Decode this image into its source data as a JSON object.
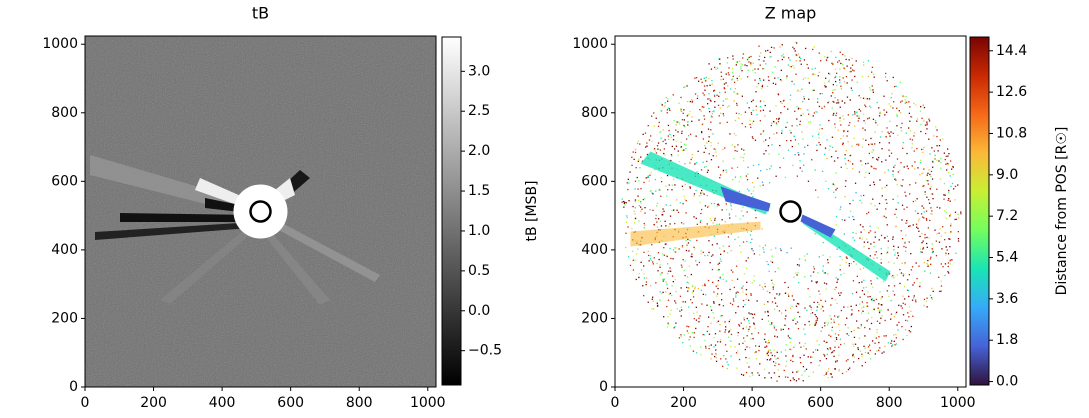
{
  "chart_data": [
    {
      "type": "image",
      "title": "tB",
      "xlim": [
        0,
        1024
      ],
      "ylim": [
        0,
        1024
      ],
      "xticks": [
        0,
        200,
        400,
        600,
        800,
        1000
      ],
      "yticks": [
        0,
        200,
        400,
        600,
        800,
        1000
      ],
      "colorbar": {
        "label": "tB [MSB]",
        "lim": [
          -0.93,
          3.43
        ],
        "ticks": [
          {
            "value": -0.5,
            "label": "−0.5"
          },
          {
            "value": 0,
            "label": "0.0"
          },
          0.5,
          {
            "value": 1,
            "label": "1.0"
          },
          1.5,
          {
            "value": 2,
            "label": "2.0"
          },
          2.5,
          {
            "value": 3,
            "label": "3.0"
          }
        ],
        "colors": [
          "#000000",
          "#ffffff"
        ]
      }
    },
    {
      "type": "image",
      "title": "Z map",
      "xlim": [
        0,
        1024
      ],
      "ylim": [
        0,
        1024
      ],
      "xticks": [
        0,
        200,
        400,
        600,
        800,
        1000
      ],
      "yticks": [
        0,
        200,
        400,
        600,
        800,
        1000
      ],
      "colorbar": {
        "label": "Distance from POS [R☉]",
        "lim": [
          -0.15,
          15.0
        ],
        "ticks": [
          {
            "value": 0,
            "label": "0.0"
          },
          1.8,
          3.6,
          5.4,
          7.2,
          {
            "value": 9,
            "label": "9.0"
          },
          10.8,
          12.6,
          14.4
        ],
        "colors": [
          "#30123b",
          "#4662d7",
          "#36aaf9",
          "#1ae4b6",
          "#72fe5e",
          "#c7ef34",
          "#fbb938",
          "#f56918",
          "#c92903",
          "#7a0403"
        ]
      }
    }
  ]
}
